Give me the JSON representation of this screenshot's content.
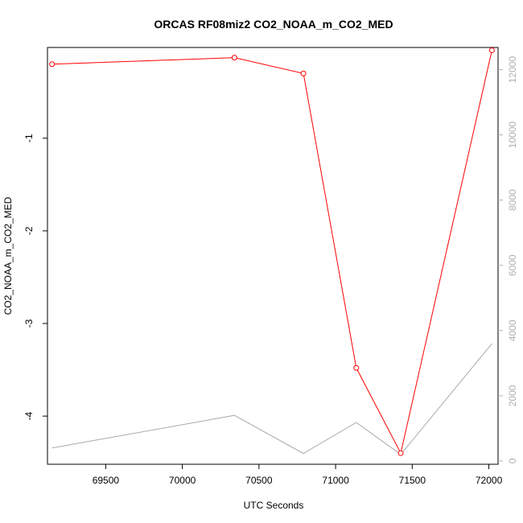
{
  "chart_data": {
    "type": "line",
    "title": "ORCAS RF08miz2 CO2_NOAA_m_CO2_MED",
    "xlabel": "UTC Seconds",
    "ylabel": "CO2_NOAA_m_CO2_MED",
    "x_ticks": [
      69500,
      70000,
      70500,
      71000,
      71500,
      72000
    ],
    "y_ticks": [
      -1,
      -2,
      -3,
      -4
    ],
    "y2_ticks": [
      0,
      2000,
      4000,
      6000,
      8000,
      10000,
      12000
    ],
    "xlim": [
      69120,
      72060
    ],
    "ylim": [
      -4.52,
      -0.02
    ],
    "y2lim": [
      -100,
      12680
    ],
    "colors": {
      "primary": "#ff0000",
      "secondary": "#aaaaaa",
      "axis": "#000000",
      "secondary_axis": "#b0b0b0"
    },
    "series": [
      {
        "x": [
          69150,
          70340,
          70790,
          71135,
          71425,
          72020
        ],
        "y": [
          -0.2,
          -0.13,
          -0.3,
          -3.48,
          -4.4,
          -0.05
        ],
        "markers": true
      },
      {
        "x": [
          69150,
          70340,
          70790,
          71135,
          71425,
          72020
        ],
        "y": [
          400,
          1400,
          230,
          1180,
          200,
          3600
        ],
        "axis": "right"
      }
    ]
  }
}
